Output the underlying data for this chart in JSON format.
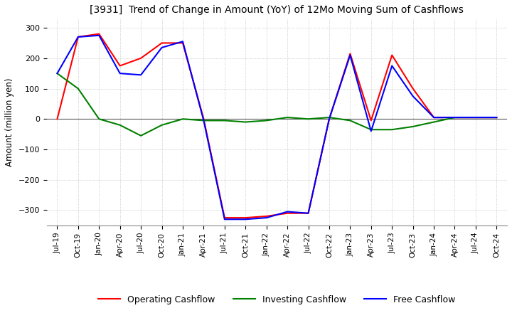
{
  "title": "[3931]  Trend of Change in Amount (YoY) of 12Mo Moving Sum of Cashflows",
  "ylabel": "Amount (million yen)",
  "ylim": [
    -350,
    330
  ],
  "yticks": [
    -300,
    -200,
    -100,
    0,
    100,
    200,
    300
  ],
  "x_labels": [
    "Jul-19",
    "Oct-19",
    "Jan-20",
    "Apr-20",
    "Jul-20",
    "Oct-20",
    "Jan-21",
    "Apr-21",
    "Jul-21",
    "Oct-21",
    "Jan-22",
    "Apr-22",
    "Jul-22",
    "Oct-22",
    "Jan-23",
    "Apr-23",
    "Jul-23",
    "Oct-23",
    "Jan-24",
    "Apr-24",
    "Jul-24",
    "Oct-24"
  ],
  "operating": [
    0,
    270,
    280,
    175,
    200,
    250,
    250,
    0,
    -325,
    -325,
    -320,
    -310,
    -310,
    0,
    215,
    -5,
    210,
    100,
    5,
    5,
    5,
    5
  ],
  "investing": [
    150,
    100,
    0,
    -20,
    -55,
    -20,
    0,
    -5,
    -5,
    -10,
    -5,
    5,
    0,
    5,
    -5,
    -35,
    -35,
    -25,
    -10,
    5,
    5,
    5
  ],
  "free": [
    150,
    270,
    275,
    150,
    145,
    235,
    255,
    -5,
    -330,
    -330,
    -325,
    -305,
    -310,
    0,
    210,
    -40,
    175,
    75,
    5,
    5,
    5,
    5
  ],
  "color_operating": "#ff0000",
  "color_investing": "#008000",
  "color_free": "#0000ff",
  "background_color": "#ffffff",
  "grid_color": "#b0b0b0"
}
